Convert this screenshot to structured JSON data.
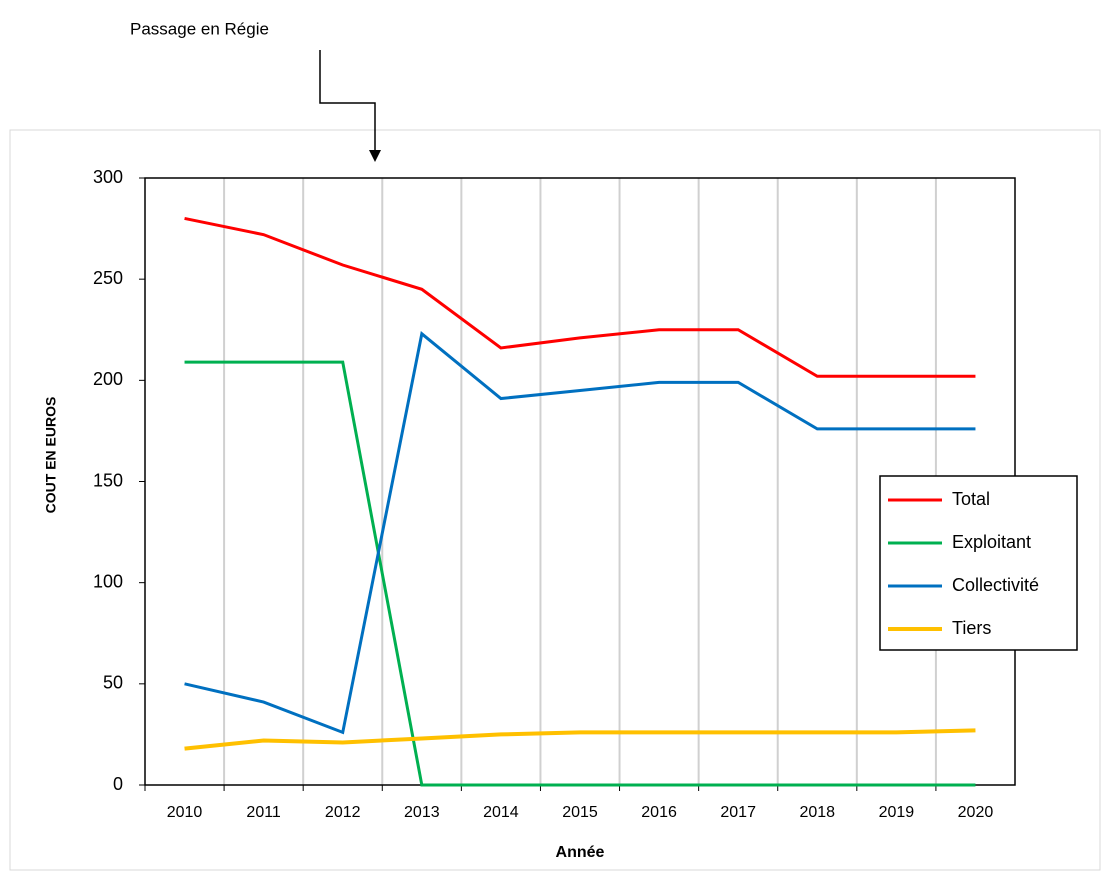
{
  "chart_data": {
    "type": "line",
    "annotation": "Passage en Régie",
    "x_label": "Année",
    "y_label": "COUT EN EUROS",
    "categories": [
      "2010",
      "2011",
      "2012",
      "2013",
      "2014",
      "2015",
      "2016",
      "2017",
      "2018",
      "2019",
      "2020"
    ],
    "series": [
      {
        "name": "Total",
        "color": "#ff0000",
        "values": [
          280,
          272,
          257,
          245,
          216,
          221,
          225,
          225,
          202,
          202,
          202
        ]
      },
      {
        "name": "Exploitant",
        "color": "#00b050",
        "values": [
          209,
          209,
          209,
          0,
          0,
          0,
          0,
          0,
          0,
          0,
          0
        ]
      },
      {
        "name": "Collectivité",
        "color": "#0070c0",
        "values": [
          50,
          41,
          26,
          223,
          191,
          195,
          199,
          199,
          176,
          176,
          176
        ]
      },
      {
        "name": "Tiers",
        "color": "#ffc000",
        "values": [
          18,
          22,
          21,
          23,
          25,
          26,
          26,
          26,
          26,
          26,
          27
        ]
      }
    ],
    "ylim": [
      0,
      300
    ],
    "yticks": [
      0,
      50,
      100,
      150,
      200,
      250,
      300
    ],
    "grid": "vertical",
    "legend": "right"
  }
}
